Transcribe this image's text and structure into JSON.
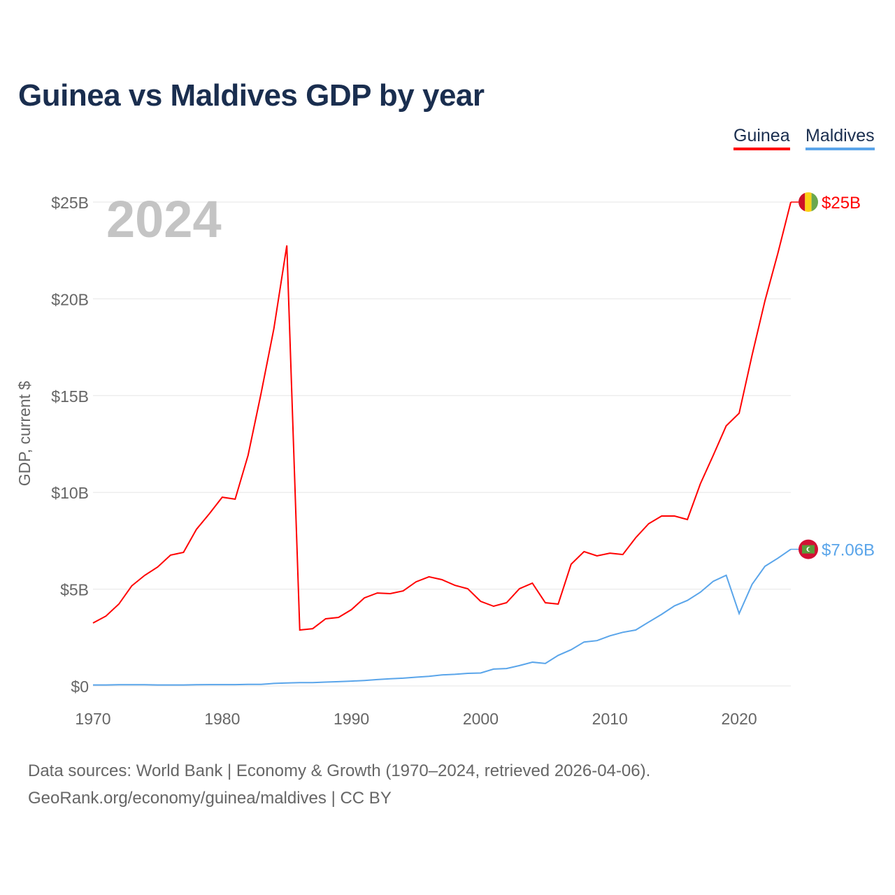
{
  "chart_data": {
    "type": "line",
    "title": "Guinea vs Maldives GDP by year",
    "ylabel": "GDP, current $",
    "xlabel": "",
    "year_watermark": "2024",
    "xlim": [
      1970,
      2024
    ],
    "ylim": [
      0,
      25
    ],
    "x_ticks": [
      "1970",
      "1980",
      "1990",
      "2000",
      "2010",
      "2020"
    ],
    "y_ticks": [
      {
        "v": 0,
        "label": "$0"
      },
      {
        "v": 5,
        "label": "$5B"
      },
      {
        "v": 10,
        "label": "$10B"
      },
      {
        "v": 15,
        "label": "$15B"
      },
      {
        "v": 20,
        "label": "$20B"
      },
      {
        "v": 25,
        "label": "$25B"
      }
    ],
    "grid": true,
    "legend_placement": "top-right",
    "x": [
      1970,
      1971,
      1972,
      1973,
      1974,
      1975,
      1976,
      1977,
      1978,
      1979,
      1980,
      1981,
      1982,
      1983,
      1984,
      1985,
      1986,
      1987,
      1988,
      1989,
      1990,
      1991,
      1992,
      1993,
      1994,
      1995,
      1996,
      1997,
      1998,
      1999,
      2000,
      2001,
      2002,
      2003,
      2004,
      2005,
      2006,
      2007,
      2008,
      2009,
      2010,
      2011,
      2012,
      2013,
      2014,
      2015,
      2016,
      2017,
      2018,
      2019,
      2020,
      2021,
      2022,
      2023,
      2024
    ],
    "series": [
      {
        "name": "Guinea",
        "color": "#ff0000",
        "end_label": "$25B",
        "values": [
          3.25,
          3.61,
          4.23,
          5.17,
          5.71,
          6.14,
          6.76,
          6.9,
          8.09,
          8.89,
          9.75,
          9.65,
          11.92,
          15.1,
          18.46,
          22.76,
          2.89,
          2.96,
          3.47,
          3.54,
          3.94,
          4.55,
          4.8,
          4.77,
          4.91,
          5.38,
          5.64,
          5.49,
          5.2,
          5.02,
          4.37,
          4.12,
          4.3,
          5.02,
          5.31,
          4.3,
          4.23,
          6.29,
          6.94,
          6.72,
          6.86,
          6.79,
          7.66,
          8.38,
          8.78,
          8.78,
          8.6,
          10.44,
          11.92,
          13.44,
          14.09,
          17.09,
          19.9,
          22.36,
          25.0
        ]
      },
      {
        "name": "Maldives",
        "color": "#5aa5ea",
        "end_label": "$7.06B",
        "values": [
          0.05,
          0.05,
          0.06,
          0.06,
          0.06,
          0.05,
          0.05,
          0.05,
          0.06,
          0.07,
          0.07,
          0.07,
          0.08,
          0.08,
          0.13,
          0.15,
          0.17,
          0.17,
          0.2,
          0.22,
          0.25,
          0.28,
          0.33,
          0.37,
          0.4,
          0.45,
          0.5,
          0.57,
          0.6,
          0.65,
          0.67,
          0.87,
          0.9,
          1.05,
          1.23,
          1.16,
          1.58,
          1.87,
          2.27,
          2.34,
          2.59,
          2.77,
          2.89,
          3.3,
          3.7,
          4.14,
          4.42,
          4.84,
          5.41,
          5.72,
          3.74,
          5.25,
          6.18,
          6.6,
          7.06
        ]
      }
    ]
  },
  "footer": {
    "line1": "Data sources: World Bank | Economy & Growth (1970–2024, retrieved 2026-04-06).",
    "line2": "GeoRank.org/economy/guinea/maldives | CC BY"
  }
}
